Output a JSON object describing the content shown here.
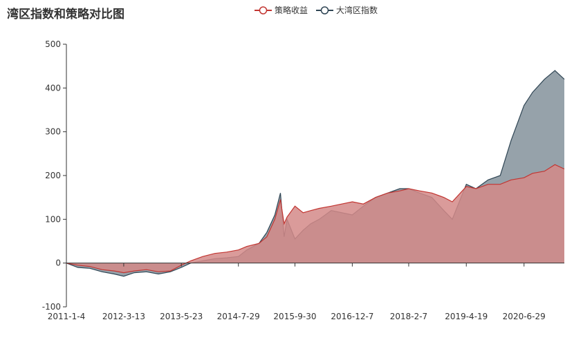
{
  "chart_data": {
    "type": "area",
    "title": "湾区指数和策略对比图",
    "xlabel": "",
    "ylabel": "",
    "ylim": [
      -100,
      500
    ],
    "yticks": [
      -100,
      0,
      100,
      200,
      300,
      400,
      500
    ],
    "xtick_labels": [
      "2011-1-4",
      "2012-3-13",
      "2013-5-23",
      "2014-7-29",
      "2015-9-30",
      "2016-12-7",
      "2018-2-7",
      "2019-4-19",
      "2020-6-29"
    ],
    "legend_position": "top-center",
    "grid": false,
    "x": [
      "2011-1-4",
      "2011-4-1",
      "2011-7-1",
      "2011-10-1",
      "2012-1-1",
      "2012-3-13",
      "2012-6-1",
      "2012-9-1",
      "2012-12-1",
      "2013-3-1",
      "2013-5-23",
      "2013-8-1",
      "2013-11-1",
      "2014-2-1",
      "2014-5-1",
      "2014-7-29",
      "2014-10-1",
      "2015-1-1",
      "2015-3-1",
      "2015-5-1",
      "2015-6-12",
      "2015-7-10",
      "2015-8-1",
      "2015-9-30",
      "2015-12-1",
      "2016-1-28",
      "2016-4-1",
      "2016-7-1",
      "2016-12-7",
      "2017-3-1",
      "2017-6-1",
      "2017-9-1",
      "2017-12-1",
      "2018-2-7",
      "2018-5-1",
      "2018-8-1",
      "2018-10-31",
      "2019-1-3",
      "2019-4-19",
      "2019-7-1",
      "2019-10-1",
      "2020-1-1",
      "2020-3-23",
      "2020-6-29",
      "2020-9-1",
      "2020-12-1",
      "2021-2-18",
      "2021-4-30"
    ],
    "series": [
      {
        "name": "策略收益",
        "color": "#c23531",
        "fill": "#d48a88",
        "values": [
          0,
          -5,
          -8,
          -15,
          -18,
          -22,
          -18,
          -15,
          -20,
          -18,
          -5,
          5,
          15,
          22,
          25,
          30,
          38,
          45,
          60,
          100,
          145,
          90,
          105,
          130,
          115,
          120,
          125,
          130,
          140,
          135,
          150,
          160,
          165,
          170,
          165,
          160,
          150,
          140,
          175,
          170,
          180,
          180,
          190,
          195,
          205,
          210,
          225,
          215
        ]
      },
      {
        "name": "大湾区指数",
        "color": "#2f4554",
        "fill": "#96a2aa",
        "values": [
          0,
          -10,
          -12,
          -20,
          -25,
          -30,
          -22,
          -20,
          -25,
          -20,
          -10,
          0,
          5,
          10,
          12,
          15,
          30,
          45,
          70,
          110,
          160,
          60,
          100,
          55,
          75,
          90,
          100,
          120,
          110,
          130,
          150,
          160,
          170,
          170,
          160,
          150,
          120,
          100,
          180,
          170,
          190,
          200,
          280,
          360,
          390,
          420,
          440,
          420
        ]
      }
    ]
  }
}
